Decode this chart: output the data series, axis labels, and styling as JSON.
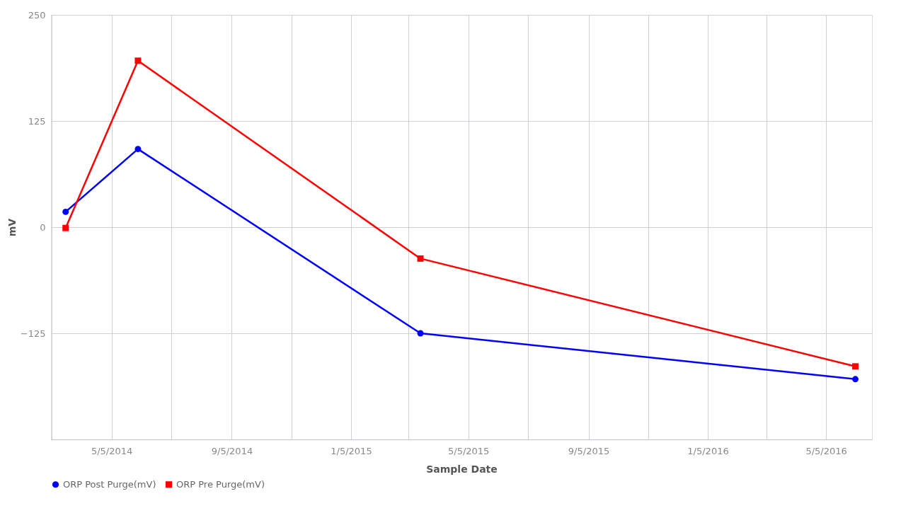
{
  "chart_data": {
    "type": "line",
    "xlabel": "Sample Date",
    "ylabel": "mV",
    "x": [
      "2014-03-19",
      "2014-06-01",
      "2015-03-17",
      "2016-06-04"
    ],
    "series": [
      {
        "name": "ORP Post Purge(mV)",
        "color": "#0000ff",
        "marker": "circle",
        "values": [
          18,
          92,
          -125,
          -179
        ]
      },
      {
        "name": "ORP Pre Purge(mV)",
        "color": "#ff0000",
        "marker": "square",
        "values": [
          -1,
          196,
          -37,
          -164
        ]
      }
    ],
    "xlim": [
      "2014-03-04",
      "2016-06-21"
    ],
    "xticks": [
      {
        "value": "2014-03-05",
        "label": null
      },
      {
        "value": "2014-05-05",
        "label": "5/5/2014"
      },
      {
        "value": "2014-07-05",
        "label": null
      },
      {
        "value": "2014-09-05",
        "label": "9/5/2014"
      },
      {
        "value": "2014-11-05",
        "label": null
      },
      {
        "value": "2015-01-05",
        "label": "1/5/2015"
      },
      {
        "value": "2015-03-05",
        "label": null
      },
      {
        "value": "2015-05-05",
        "label": "5/5/2015"
      },
      {
        "value": "2015-07-05",
        "label": null
      },
      {
        "value": "2015-09-05",
        "label": "9/5/2015"
      },
      {
        "value": "2015-11-05",
        "label": null
      },
      {
        "value": "2016-01-05",
        "label": "1/5/2016"
      },
      {
        "value": "2016-03-05",
        "label": null
      },
      {
        "value": "2016-05-05",
        "label": "5/5/2016"
      }
    ],
    "ylim": [
      -250,
      250
    ],
    "yticks": [
      -125,
      0,
      125,
      250
    ],
    "grid": true,
    "legend": "bottom left",
    "line_style": "solid"
  }
}
